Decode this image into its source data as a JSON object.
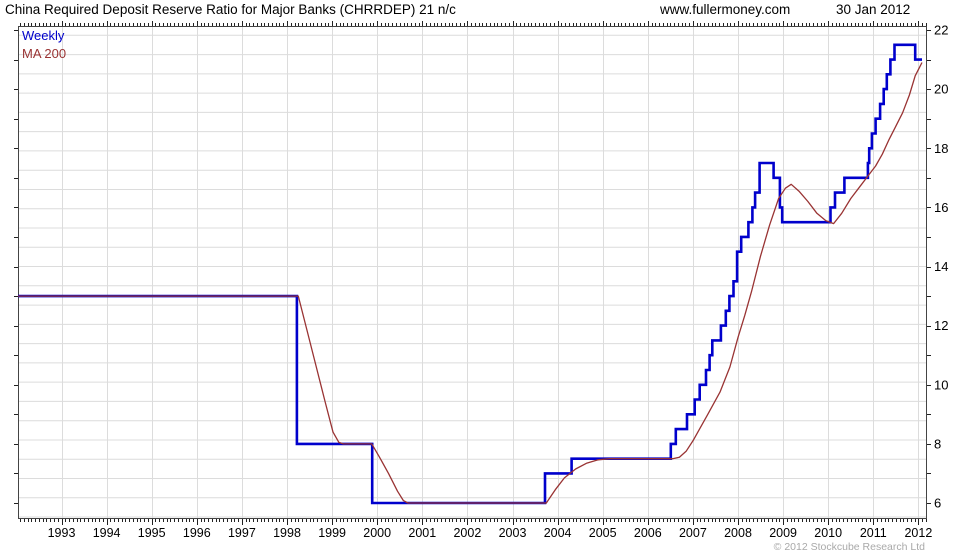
{
  "header": {
    "title": "China Required Deposit Reserve Ratio for Major Banks (CHRRDEP) 21 n/c",
    "website": "www.fullermoney.com",
    "date": "30 Jan 2012"
  },
  "legend": [
    {
      "label": "Weekly",
      "color": "#0000cc"
    },
    {
      "label": "MA 200",
      "color": "#993333"
    }
  ],
  "footer": {
    "copyright": "© 2012 Stockcube Research Ltd"
  },
  "chart_data": {
    "type": "line",
    "title": "China Required Deposit Reserve Ratio for Major Banks (CHRRDEP) 21 n/c",
    "last_value": 21,
    "x_axis": {
      "year_labels": [
        1993,
        1994,
        1995,
        1996,
        1997,
        1998,
        1999,
        2000,
        2001,
        2002,
        2003,
        2004,
        2005,
        2006,
        2007,
        2008,
        2009,
        2010,
        2011,
        2012
      ],
      "range": [
        1992.04,
        2012.19
      ],
      "minor_tick": "monthly"
    },
    "y_axis": {
      "tick_labels": [
        22,
        20,
        18,
        16,
        14,
        12,
        10,
        8,
        6
      ],
      "unit_ticks_from": 6,
      "unit_ticks_to": 22,
      "range": [
        5.45,
        22.15
      ],
      "side": "right"
    },
    "grid": {
      "color": "#dcdcdc",
      "h_spacing_px": 19.27,
      "v_lines": "yearly"
    },
    "series": [
      {
        "name": "Weekly",
        "type": "step",
        "color": "#0000cc",
        "width": 2.6,
        "end_x": 2012.08,
        "points": [
          [
            1992.0,
            13
          ],
          [
            1998.22,
            8
          ],
          [
            1999.89,
            6
          ],
          [
            2003.72,
            7
          ],
          [
            2004.31,
            7.5
          ],
          [
            2006.51,
            8
          ],
          [
            2006.62,
            8.5
          ],
          [
            2006.87,
            9
          ],
          [
            2007.04,
            9.5
          ],
          [
            2007.15,
            10
          ],
          [
            2007.29,
            10.5
          ],
          [
            2007.37,
            11
          ],
          [
            2007.43,
            11.5
          ],
          [
            2007.62,
            12
          ],
          [
            2007.73,
            12.5
          ],
          [
            2007.81,
            13
          ],
          [
            2007.9,
            13.5
          ],
          [
            2007.98,
            14.5
          ],
          [
            2008.07,
            15
          ],
          [
            2008.23,
            15.5
          ],
          [
            2008.32,
            16
          ],
          [
            2008.38,
            16.5
          ],
          [
            2008.48,
            17.5
          ],
          [
            2008.79,
            17
          ],
          [
            2008.93,
            16
          ],
          [
            2008.98,
            15.5
          ],
          [
            2010.05,
            16
          ],
          [
            2010.15,
            16.5
          ],
          [
            2010.36,
            17
          ],
          [
            2010.88,
            17.5
          ],
          [
            2010.91,
            18
          ],
          [
            2010.97,
            18.5
          ],
          [
            2011.05,
            19
          ],
          [
            2011.15,
            19.5
          ],
          [
            2011.23,
            20
          ],
          [
            2011.3,
            20.5
          ],
          [
            2011.38,
            21
          ],
          [
            2011.47,
            21.5
          ],
          [
            2011.93,
            21
          ]
        ]
      },
      {
        "name": "MA 200",
        "type": "line",
        "color": "#993333",
        "width": 1.3,
        "points": [
          [
            1992.0,
            13
          ],
          [
            1998.25,
            13
          ],
          [
            1998.45,
            11.8
          ],
          [
            1998.65,
            10.6
          ],
          [
            1998.85,
            9.4
          ],
          [
            1999.02,
            8.4
          ],
          [
            1999.15,
            8.05
          ],
          [
            1999.25,
            8
          ],
          [
            1999.88,
            8
          ],
          [
            2000.05,
            7.55
          ],
          [
            2000.25,
            7
          ],
          [
            2000.45,
            6.4
          ],
          [
            2000.58,
            6.08
          ],
          [
            2000.68,
            6
          ],
          [
            2003.75,
            6
          ],
          [
            2003.95,
            6.45
          ],
          [
            2004.15,
            6.85
          ],
          [
            2004.4,
            7.15
          ],
          [
            2004.65,
            7.35
          ],
          [
            2004.9,
            7.46
          ],
          [
            2005.15,
            7.5
          ],
          [
            2006.55,
            7.5
          ],
          [
            2006.7,
            7.55
          ],
          [
            2006.85,
            7.75
          ],
          [
            2007.0,
            8.1
          ],
          [
            2007.33,
            9
          ],
          [
            2007.6,
            9.75
          ],
          [
            2007.82,
            10.6
          ],
          [
            2008.0,
            11.6
          ],
          [
            2008.15,
            12.35
          ],
          [
            2008.3,
            13.15
          ],
          [
            2008.5,
            14.35
          ],
          [
            2008.7,
            15.4
          ],
          [
            2008.9,
            16.3
          ],
          [
            2009.05,
            16.65
          ],
          [
            2009.18,
            16.78
          ],
          [
            2009.35,
            16.55
          ],
          [
            2009.55,
            16.2
          ],
          [
            2009.75,
            15.8
          ],
          [
            2009.95,
            15.55
          ],
          [
            2010.12,
            15.45
          ],
          [
            2010.3,
            15.8
          ],
          [
            2010.5,
            16.3
          ],
          [
            2010.7,
            16.7
          ],
          [
            2010.9,
            17.1
          ],
          [
            2011.05,
            17.4
          ],
          [
            2011.2,
            17.8
          ],
          [
            2011.35,
            18.3
          ],
          [
            2011.5,
            18.75
          ],
          [
            2011.65,
            19.2
          ],
          [
            2011.8,
            19.8
          ],
          [
            2011.93,
            20.45
          ],
          [
            2012.02,
            20.72
          ],
          [
            2012.08,
            20.9
          ]
        ]
      }
    ]
  }
}
